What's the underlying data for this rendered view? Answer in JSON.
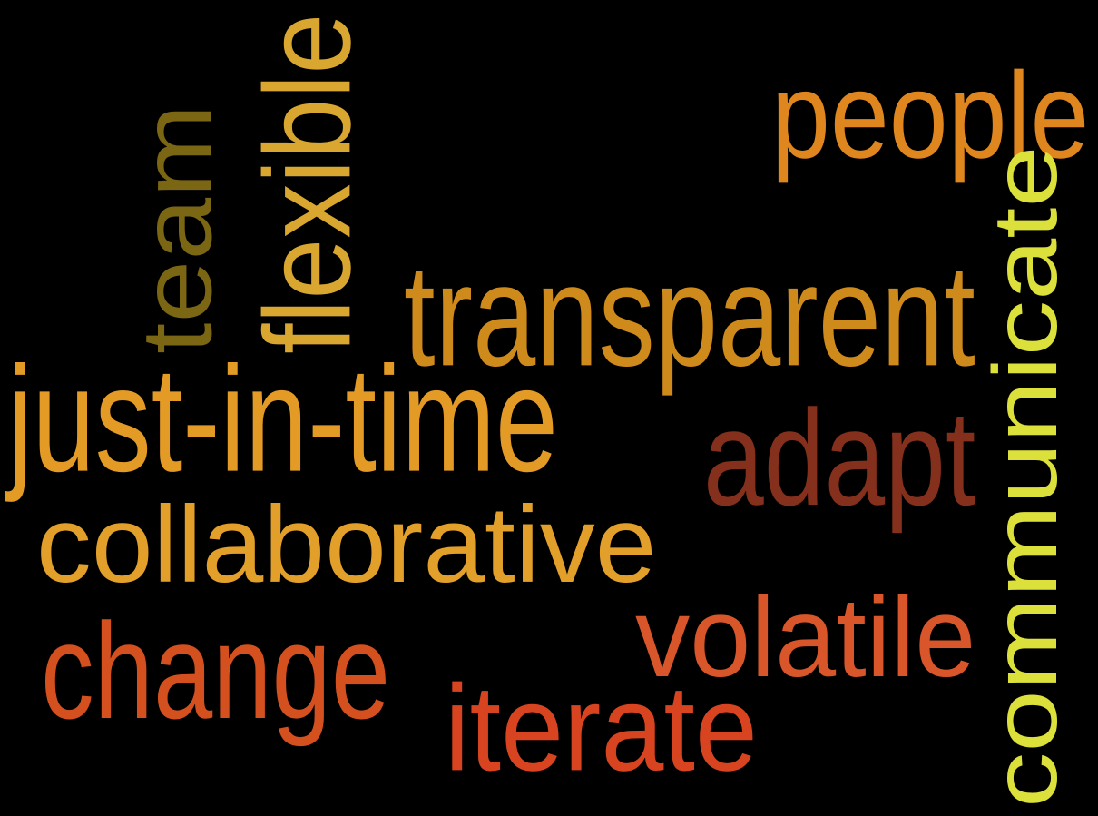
{
  "background": "#000000",
  "words": [
    {
      "id": "people",
      "text": "people",
      "color": "#e0861e",
      "orientation": "horizontal"
    },
    {
      "id": "flexible",
      "text": "flexible",
      "color": "#d9a630",
      "orientation": "vertical"
    },
    {
      "id": "team",
      "text": "team",
      "color": "#7b6614",
      "orientation": "vertical"
    },
    {
      "id": "transparent",
      "text": "transparent",
      "color": "#cf8a1c",
      "orientation": "horizontal"
    },
    {
      "id": "communicate",
      "text": "communicate",
      "color": "#dbe03a",
      "orientation": "vertical"
    },
    {
      "id": "just-in-time",
      "text": "just-in-time",
      "color": "#e39b26",
      "orientation": "horizontal"
    },
    {
      "id": "adapt",
      "text": "adapt",
      "color": "#85301c",
      "orientation": "horizontal"
    },
    {
      "id": "collaborative",
      "text": "collaborative",
      "color": "#e2a02b",
      "orientation": "horizontal"
    },
    {
      "id": "volatile",
      "text": "volatile",
      "color": "#d9562a",
      "orientation": "horizontal"
    },
    {
      "id": "change",
      "text": "change",
      "color": "#d5501f",
      "orientation": "horizontal"
    },
    {
      "id": "iterate",
      "text": "iterate",
      "color": "#d84420",
      "orientation": "horizontal"
    }
  ]
}
